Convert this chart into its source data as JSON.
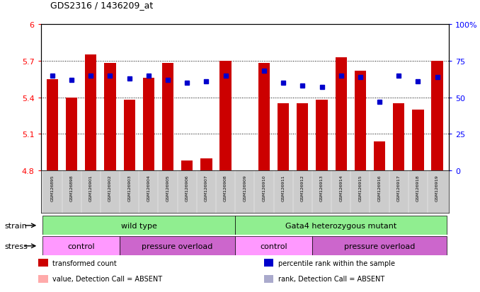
{
  "title": "GDS2316 / 1436209_at",
  "samples": [
    "GSM126895",
    "GSM126898",
    "GSM126901",
    "GSM126902",
    "GSM126903",
    "GSM126904",
    "GSM126905",
    "GSM126906",
    "GSM126907",
    "GSM126908",
    "GSM126909",
    "GSM126910",
    "GSM126911",
    "GSM126912",
    "GSM126913",
    "GSM126914",
    "GSM126915",
    "GSM126916",
    "GSM126917",
    "GSM126918",
    "GSM126919"
  ],
  "red_values": [
    5.55,
    5.4,
    5.75,
    5.68,
    5.38,
    5.56,
    5.68,
    4.88,
    4.9,
    5.7,
    4.8,
    5.68,
    5.35,
    5.35,
    5.38,
    5.73,
    5.62,
    5.04,
    5.35,
    5.3,
    5.7
  ],
  "blue_values": [
    65,
    62,
    65,
    65,
    63,
    65,
    62,
    60,
    61,
    65,
    null,
    68,
    60,
    58,
    57,
    65,
    64,
    47,
    65,
    61,
    64
  ],
  "absent_red": [
    false,
    false,
    false,
    false,
    false,
    false,
    false,
    false,
    false,
    false,
    true,
    false,
    false,
    false,
    false,
    false,
    false,
    false,
    false,
    false,
    false
  ],
  "absent_blue": [
    false,
    false,
    false,
    false,
    false,
    false,
    false,
    false,
    false,
    false,
    true,
    false,
    false,
    false,
    false,
    false,
    false,
    false,
    false,
    false,
    false
  ],
  "ylim_left": [
    4.8,
    6.0
  ],
  "ylim_right": [
    0,
    100
  ],
  "yticks_left": [
    4.8,
    5.1,
    5.4,
    5.7,
    6.0
  ],
  "yticks_right": [
    0,
    25,
    50,
    75,
    100
  ],
  "grid_lines": [
    5.1,
    5.4,
    5.7
  ],
  "strain_groups": [
    {
      "text": "wild type",
      "start": 0,
      "end": 9,
      "color": "#90ee90"
    },
    {
      "text": "Gata4 heterozygous mutant",
      "start": 10,
      "end": 20,
      "color": "#90ee90"
    }
  ],
  "stress_groups": [
    {
      "text": "control",
      "start": 0,
      "end": 3,
      "color": "#ff99ff"
    },
    {
      "text": "pressure overload",
      "start": 4,
      "end": 9,
      "color": "#cc66cc"
    },
    {
      "text": "control",
      "start": 10,
      "end": 13,
      "color": "#ff99ff"
    },
    {
      "text": "pressure overload",
      "start": 14,
      "end": 20,
      "color": "#cc66cc"
    }
  ],
  "bar_color": "#cc0000",
  "dot_color": "#0000cc",
  "absent_bar_color": "#ffaaaa",
  "absent_dot_color": "#aaaacc",
  "tick_bg_color": "#cccccc",
  "background_color": "#ffffff"
}
